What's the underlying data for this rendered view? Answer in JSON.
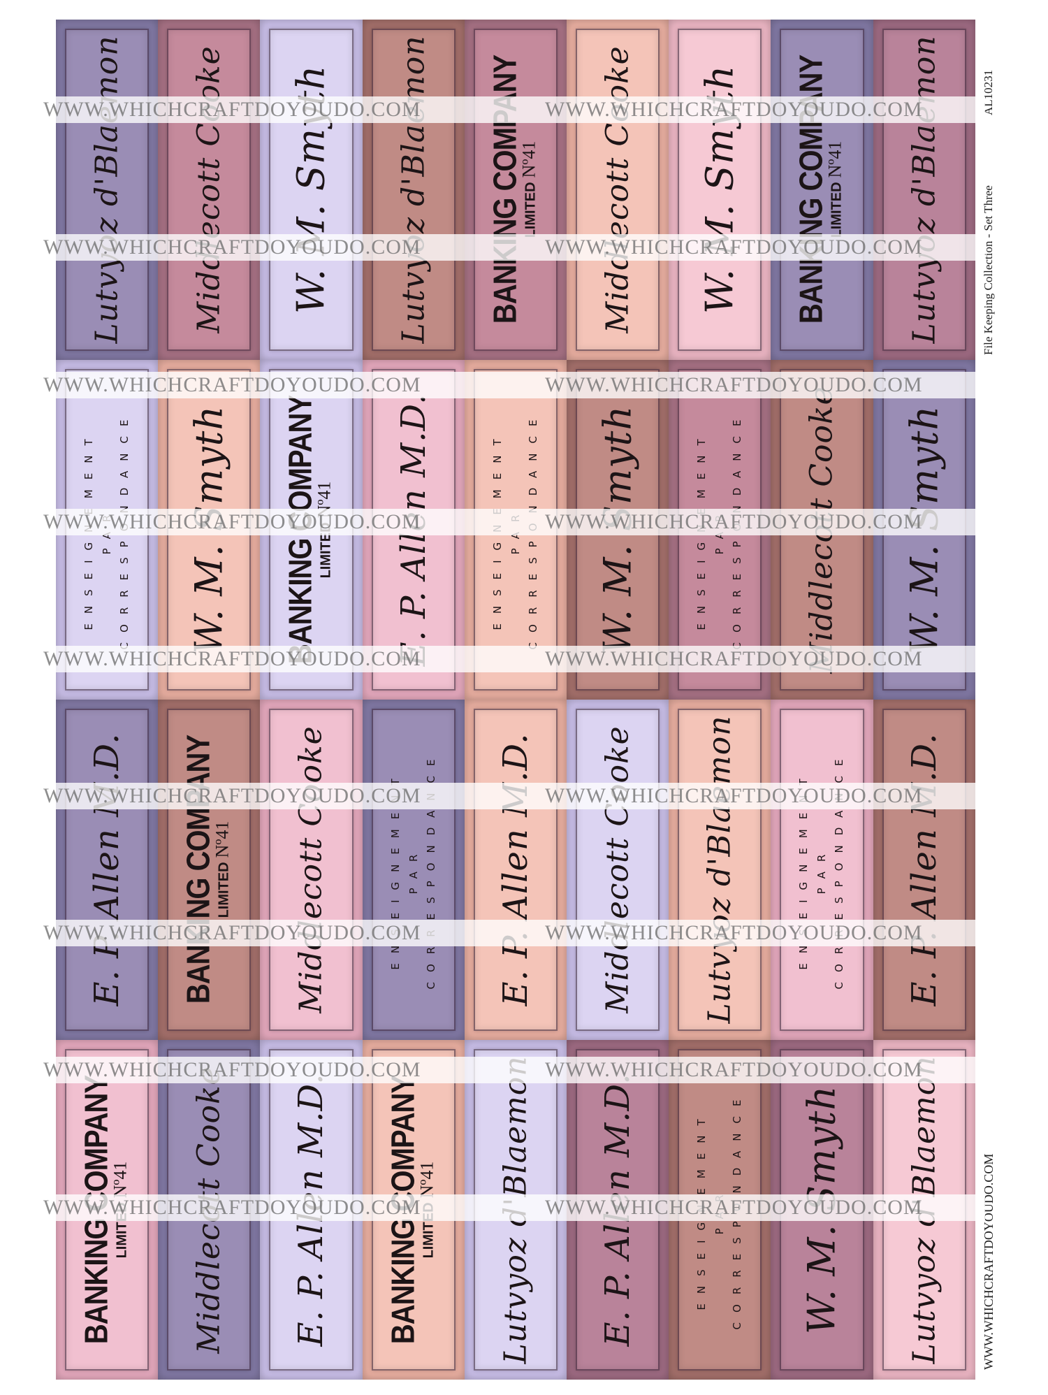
{
  "watermark": "WWW.WHICHCRAFTDOYOUDO.COM",
  "side_title": "File Keeping Collection - Set Three",
  "side_code": "AL10231",
  "side_url": "WWW.WHICHCRAFTDOYOUDO.COM",
  "label_kinds": {
    "bank": {
      "line1": "BANKING COMPANY",
      "line2": "LIMITED",
      "no": "Nº41"
    },
    "ens": {
      "line1": "ENSEIGNEMENT",
      "line2": "PAR",
      "line3": "CORRESPONDANCE"
    },
    "allen": {
      "text": "E. P. Allen M.D."
    },
    "middle": {
      "text": "Middlecott Cooke"
    },
    "wm": {
      "text": "W. M. Smyth"
    },
    "lut": {
      "text": "Lutvyoz d'Blaemon"
    }
  },
  "colors": {
    "purple": [
      "#9a8db5",
      "#837aa6"
    ],
    "mauve": [
      "#c58a9c",
      "#a97386"
    ],
    "lilac": [
      "#dcd4f2",
      "#cbc0ea"
    ],
    "brown": [
      "#c08b85",
      "#a6716c"
    ],
    "pink": [
      "#f1c0d0",
      "#e7aabf"
    ],
    "peach": [
      "#f4c4b8",
      "#ebb0a2"
    ],
    "blush": [
      "#f6c9d4",
      "#efb8c6"
    ],
    "rose": [
      "#b9839a",
      "#a06c84"
    ]
  },
  "rows": [
    [
      {
        "kind": "lut",
        "color": "purple"
      },
      {
        "kind": "middle",
        "color": "mauve"
      },
      {
        "kind": "wm",
        "color": "lilac"
      },
      {
        "kind": "lut",
        "color": "brown"
      },
      {
        "kind": "bank",
        "color": "mauve"
      },
      {
        "kind": "middle",
        "color": "peach"
      },
      {
        "kind": "wm",
        "color": "blush"
      },
      {
        "kind": "bank",
        "color": "purple"
      },
      {
        "kind": "lut",
        "color": "rose"
      }
    ],
    [
      {
        "kind": "ens",
        "color": "lilac"
      },
      {
        "kind": "wm",
        "color": "peach"
      },
      {
        "kind": "bank",
        "color": "lilac"
      },
      {
        "kind": "allen",
        "color": "pink"
      },
      {
        "kind": "ens",
        "color": "peach"
      },
      {
        "kind": "wm",
        "color": "brown"
      },
      {
        "kind": "ens",
        "color": "mauve"
      },
      {
        "kind": "middle",
        "color": "brown"
      },
      {
        "kind": "wm",
        "color": "purple"
      }
    ],
    [
      {
        "kind": "allen",
        "color": "purple"
      },
      {
        "kind": "bank",
        "color": "brown"
      },
      {
        "kind": "middle",
        "color": "pink"
      },
      {
        "kind": "ens",
        "color": "purple"
      },
      {
        "kind": "allen",
        "color": "peach"
      },
      {
        "kind": "middle",
        "color": "lilac"
      },
      {
        "kind": "lut",
        "color": "peach"
      },
      {
        "kind": "ens",
        "color": "pink"
      },
      {
        "kind": "allen",
        "color": "brown"
      }
    ],
    [
      {
        "kind": "bank",
        "color": "pink"
      },
      {
        "kind": "middle",
        "color": "purple"
      },
      {
        "kind": "allen",
        "color": "lilac"
      },
      {
        "kind": "bank",
        "color": "peach"
      },
      {
        "kind": "lut",
        "color": "lilac"
      },
      {
        "kind": "allen",
        "color": "rose"
      },
      {
        "kind": "ens",
        "color": "brown"
      },
      {
        "kind": "wm",
        "color": "rose"
      },
      {
        "kind": "lut",
        "color": "blush"
      }
    ]
  ]
}
